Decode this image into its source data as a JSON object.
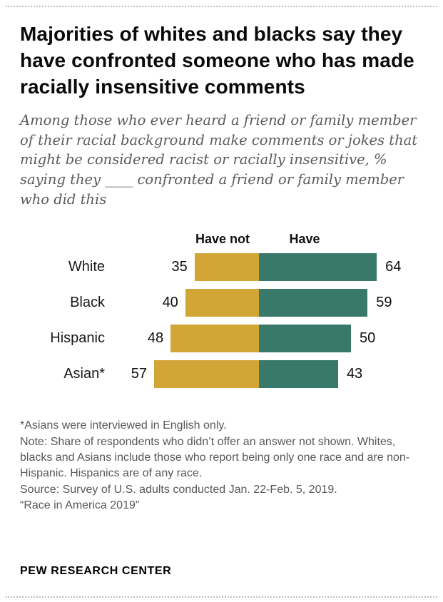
{
  "header": {
    "title": "Majorities of whites and blacks say they have confronted someone who has made racially insensitive comments",
    "subtitle": "Among those who ever heard a friend or family member of their racial background make comments or jokes that might be considered racist or racially insensitive, % saying they ____ confronted a friend or family member who did this"
  },
  "chart_data": {
    "type": "bar",
    "orientation": "horizontal-diverging",
    "categories": [
      "White",
      "Black",
      "Hispanic",
      "Asian*"
    ],
    "series": [
      {
        "name": "Have not",
        "color": "#d1a637",
        "values": [
          35,
          40,
          48,
          57
        ]
      },
      {
        "name": "Have",
        "color": "#38796a",
        "values": [
          64,
          59,
          50,
          43
        ]
      }
    ],
    "value_labels_shown": true,
    "xlim": [
      0,
      100
    ],
    "legend_position": "top-inline"
  },
  "notes": {
    "asterisk": "*Asians were interviewed in English only.",
    "methodology": "Note: Share of respondents who didn’t offer an answer not shown. Whites, blacks and Asians include those who report being only one race and are non-Hispanic. Hispanics are of any race.",
    "source": "Source: Survey of U.S. adults conducted Jan. 22-Feb. 5, 2019.",
    "report": "“Race in America 2019”"
  },
  "footer": {
    "brand": "PEW RESEARCH CENTER"
  }
}
